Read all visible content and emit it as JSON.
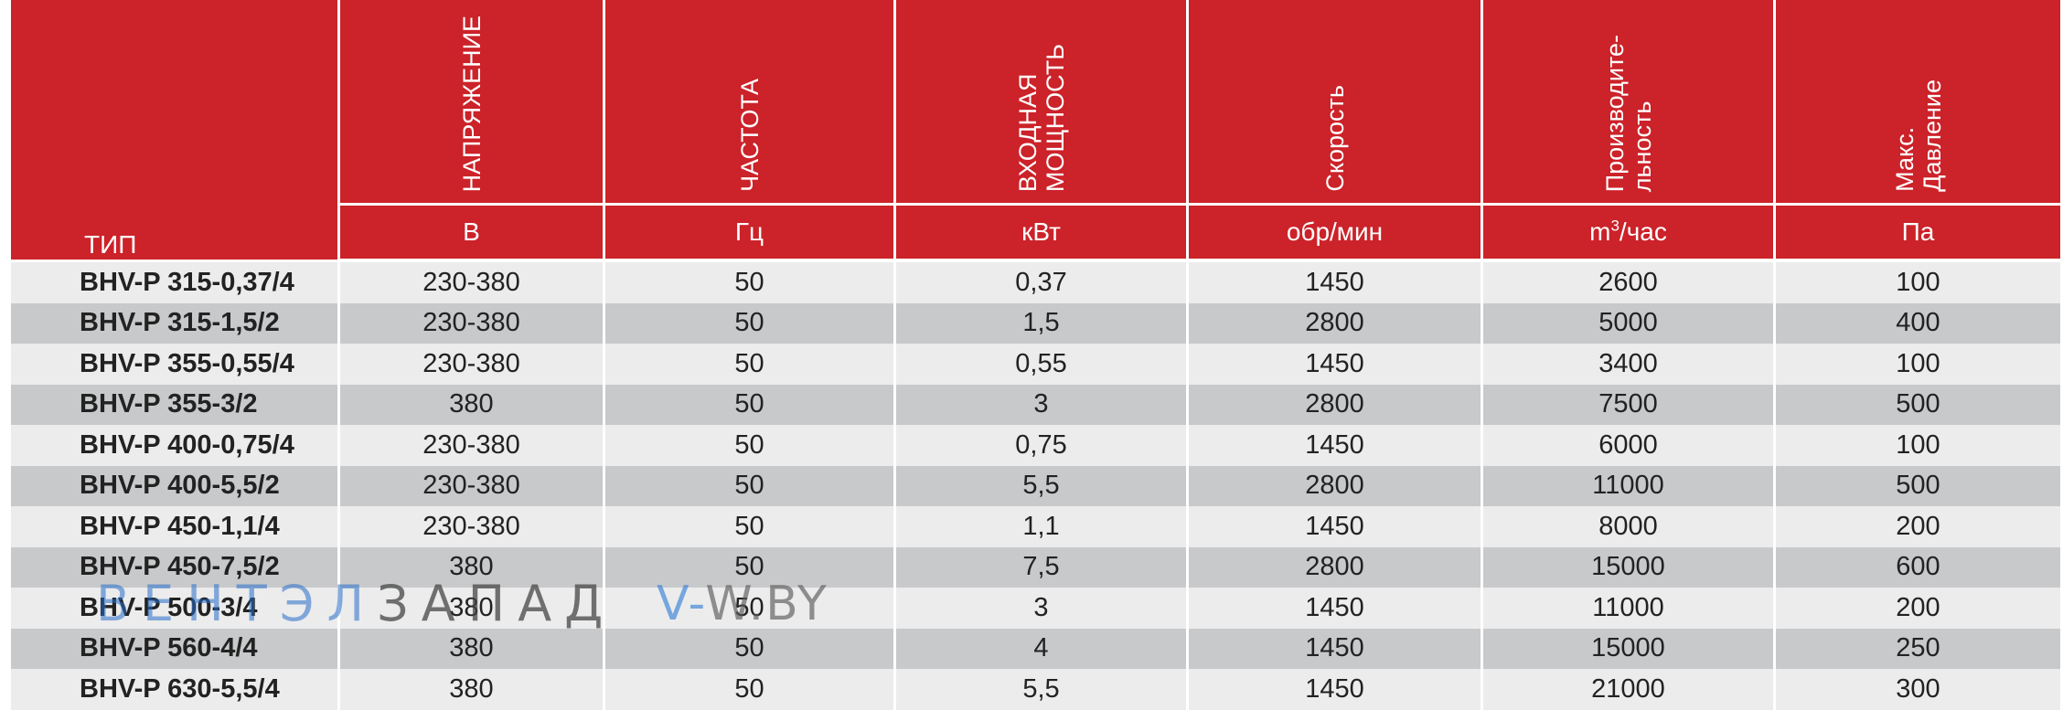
{
  "table": {
    "type_header": "ТИП",
    "columns": [
      {
        "title": "НАПРЯЖЕНИЕ",
        "unit": "В"
      },
      {
        "title": "ЧАСТОТА",
        "unit": "Гц"
      },
      {
        "title": "ВХОДНАЯ\nМОЩНОСТЬ",
        "unit": "кВт"
      },
      {
        "title": "Скорость",
        "unit": "обр/мин"
      },
      {
        "title": "Производите-\nльность",
        "unit_base": "m",
        "unit_sup": "3",
        "unit_rest": "/час"
      },
      {
        "title": "Макс.\nДавление",
        "unit": "Па"
      }
    ],
    "rows": [
      [
        "BHV-P 315-0,37/4",
        "230-380",
        "50",
        "0,37",
        "1450",
        "2600",
        "100"
      ],
      [
        "BHV-P 315-1,5/2",
        "230-380",
        "50",
        "1,5",
        "2800",
        "5000",
        "400"
      ],
      [
        "BHV-P 355-0,55/4",
        "230-380",
        "50",
        "0,55",
        "1450",
        "3400",
        "100"
      ],
      [
        "BHV-P 355-3/2",
        "380",
        "50",
        "3",
        "2800",
        "7500",
        "500"
      ],
      [
        "BHV-P 400-0,75/4",
        "230-380",
        "50",
        "0,75",
        "1450",
        "6000",
        "100"
      ],
      [
        "BHV-P 400-5,5/2",
        "230-380",
        "50",
        "5,5",
        "2800",
        "11000",
        "500"
      ],
      [
        "BHV-P 450-1,1/4",
        "230-380",
        "50",
        "1,1",
        "1450",
        "8000",
        "200"
      ],
      [
        "BHV-P 450-7,5/2",
        "380",
        "50",
        "7,5",
        "2800",
        "15000",
        "600"
      ],
      [
        "BHV-P 500-3/4",
        "380",
        "50",
        "3",
        "1450",
        "11000",
        "200"
      ],
      [
        "BHV-P 560-4/4",
        "380",
        "50",
        "4",
        "1450",
        "15000",
        "250"
      ],
      [
        "BHV-P 630-5,5/4",
        "380",
        "50",
        "5,5",
        "1450",
        "21000",
        "300"
      ]
    ]
  },
  "watermark": {
    "brand_blue": "ВЕНТЭЛ",
    "brand_gray": "ЗАПАД",
    "site_blue": "V-",
    "site_gray": "W.BY"
  },
  "colors": {
    "header_red": "#cc2229",
    "row_light": "#ececed",
    "row_dark": "#c8c9cb"
  }
}
